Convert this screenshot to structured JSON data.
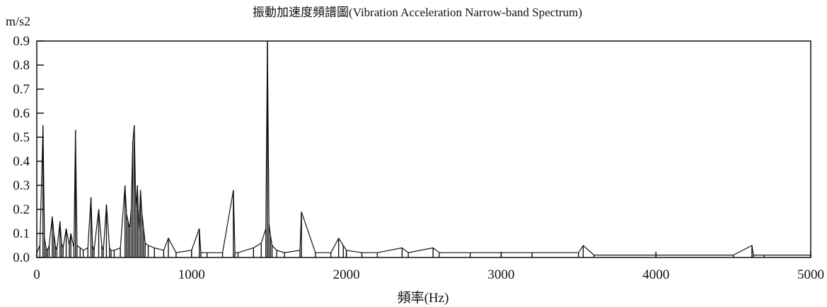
{
  "chart_data": {
    "type": "line",
    "title": "振動加速度頻譜圖(Vibration Acceleration Narrow-band Spectrum)",
    "ylabel": "m/s2",
    "xlabel": "頻率(Hz)",
    "xlim": [
      0,
      5000
    ],
    "ylim": [
      0,
      0.9
    ],
    "x_ticks": [
      "0",
      "1000",
      "2000",
      "3000",
      "4000",
      "5000"
    ],
    "y_ticks": [
      "0.0",
      "0.1",
      "0.2",
      "0.3",
      "0.4",
      "0.5",
      "0.6",
      "0.7",
      "0.8",
      "0.9"
    ],
    "grid": false,
    "line_color": "#111111",
    "series": [
      {
        "x": [
          0,
          20,
          40,
          50,
          60,
          70,
          80,
          100,
          110,
          120,
          130,
          150,
          160,
          170,
          190,
          210,
          220,
          240,
          250,
          260,
          280,
          300,
          330,
          350,
          360,
          370,
          400,
          420,
          430,
          450,
          470,
          480,
          500,
          540,
          570,
          580,
          590,
          600,
          610,
          620,
          630,
          640,
          650,
          660,
          670,
          680,
          690,
          700,
          720,
          760,
          820,
          850,
          900,
          1000,
          1050,
          1060,
          1100,
          1200,
          1270,
          1280,
          1300,
          1400,
          1450,
          1480,
          1490,
          1500,
          1510,
          1520,
          1550,
          1600,
          1700,
          1710,
          1800,
          1900,
          1950,
          1980,
          2000,
          2100,
          2200,
          2360,
          2400,
          2560,
          2600,
          2800,
          3000,
          3200,
          3500,
          3530,
          3600,
          4000,
          4500,
          4620,
          4630,
          4700,
          5000
        ],
        "y": [
          0.02,
          0.05,
          0.55,
          0.08,
          0.04,
          0.03,
          0.05,
          0.17,
          0.1,
          0.05,
          0.03,
          0.15,
          0.06,
          0.04,
          0.12,
          0.05,
          0.1,
          0.04,
          0.53,
          0.05,
          0.04,
          0.03,
          0.04,
          0.25,
          0.05,
          0.03,
          0.2,
          0.05,
          0.03,
          0.22,
          0.04,
          0.03,
          0.03,
          0.04,
          0.3,
          0.18,
          0.15,
          0.12,
          0.2,
          0.48,
          0.55,
          0.2,
          0.3,
          0.1,
          0.28,
          0.18,
          0.12,
          0.06,
          0.05,
          0.04,
          0.03,
          0.08,
          0.02,
          0.03,
          0.12,
          0.02,
          0.02,
          0.02,
          0.28,
          0.02,
          0.02,
          0.04,
          0.06,
          0.12,
          0.9,
          0.14,
          0.09,
          0.05,
          0.03,
          0.02,
          0.03,
          0.19,
          0.02,
          0.02,
          0.08,
          0.05,
          0.03,
          0.02,
          0.02,
          0.04,
          0.02,
          0.04,
          0.02,
          0.02,
          0.02,
          0.02,
          0.02,
          0.05,
          0.01,
          0.01,
          0.01,
          0.05,
          0.01,
          0.01,
          0.01
        ]
      }
    ]
  }
}
